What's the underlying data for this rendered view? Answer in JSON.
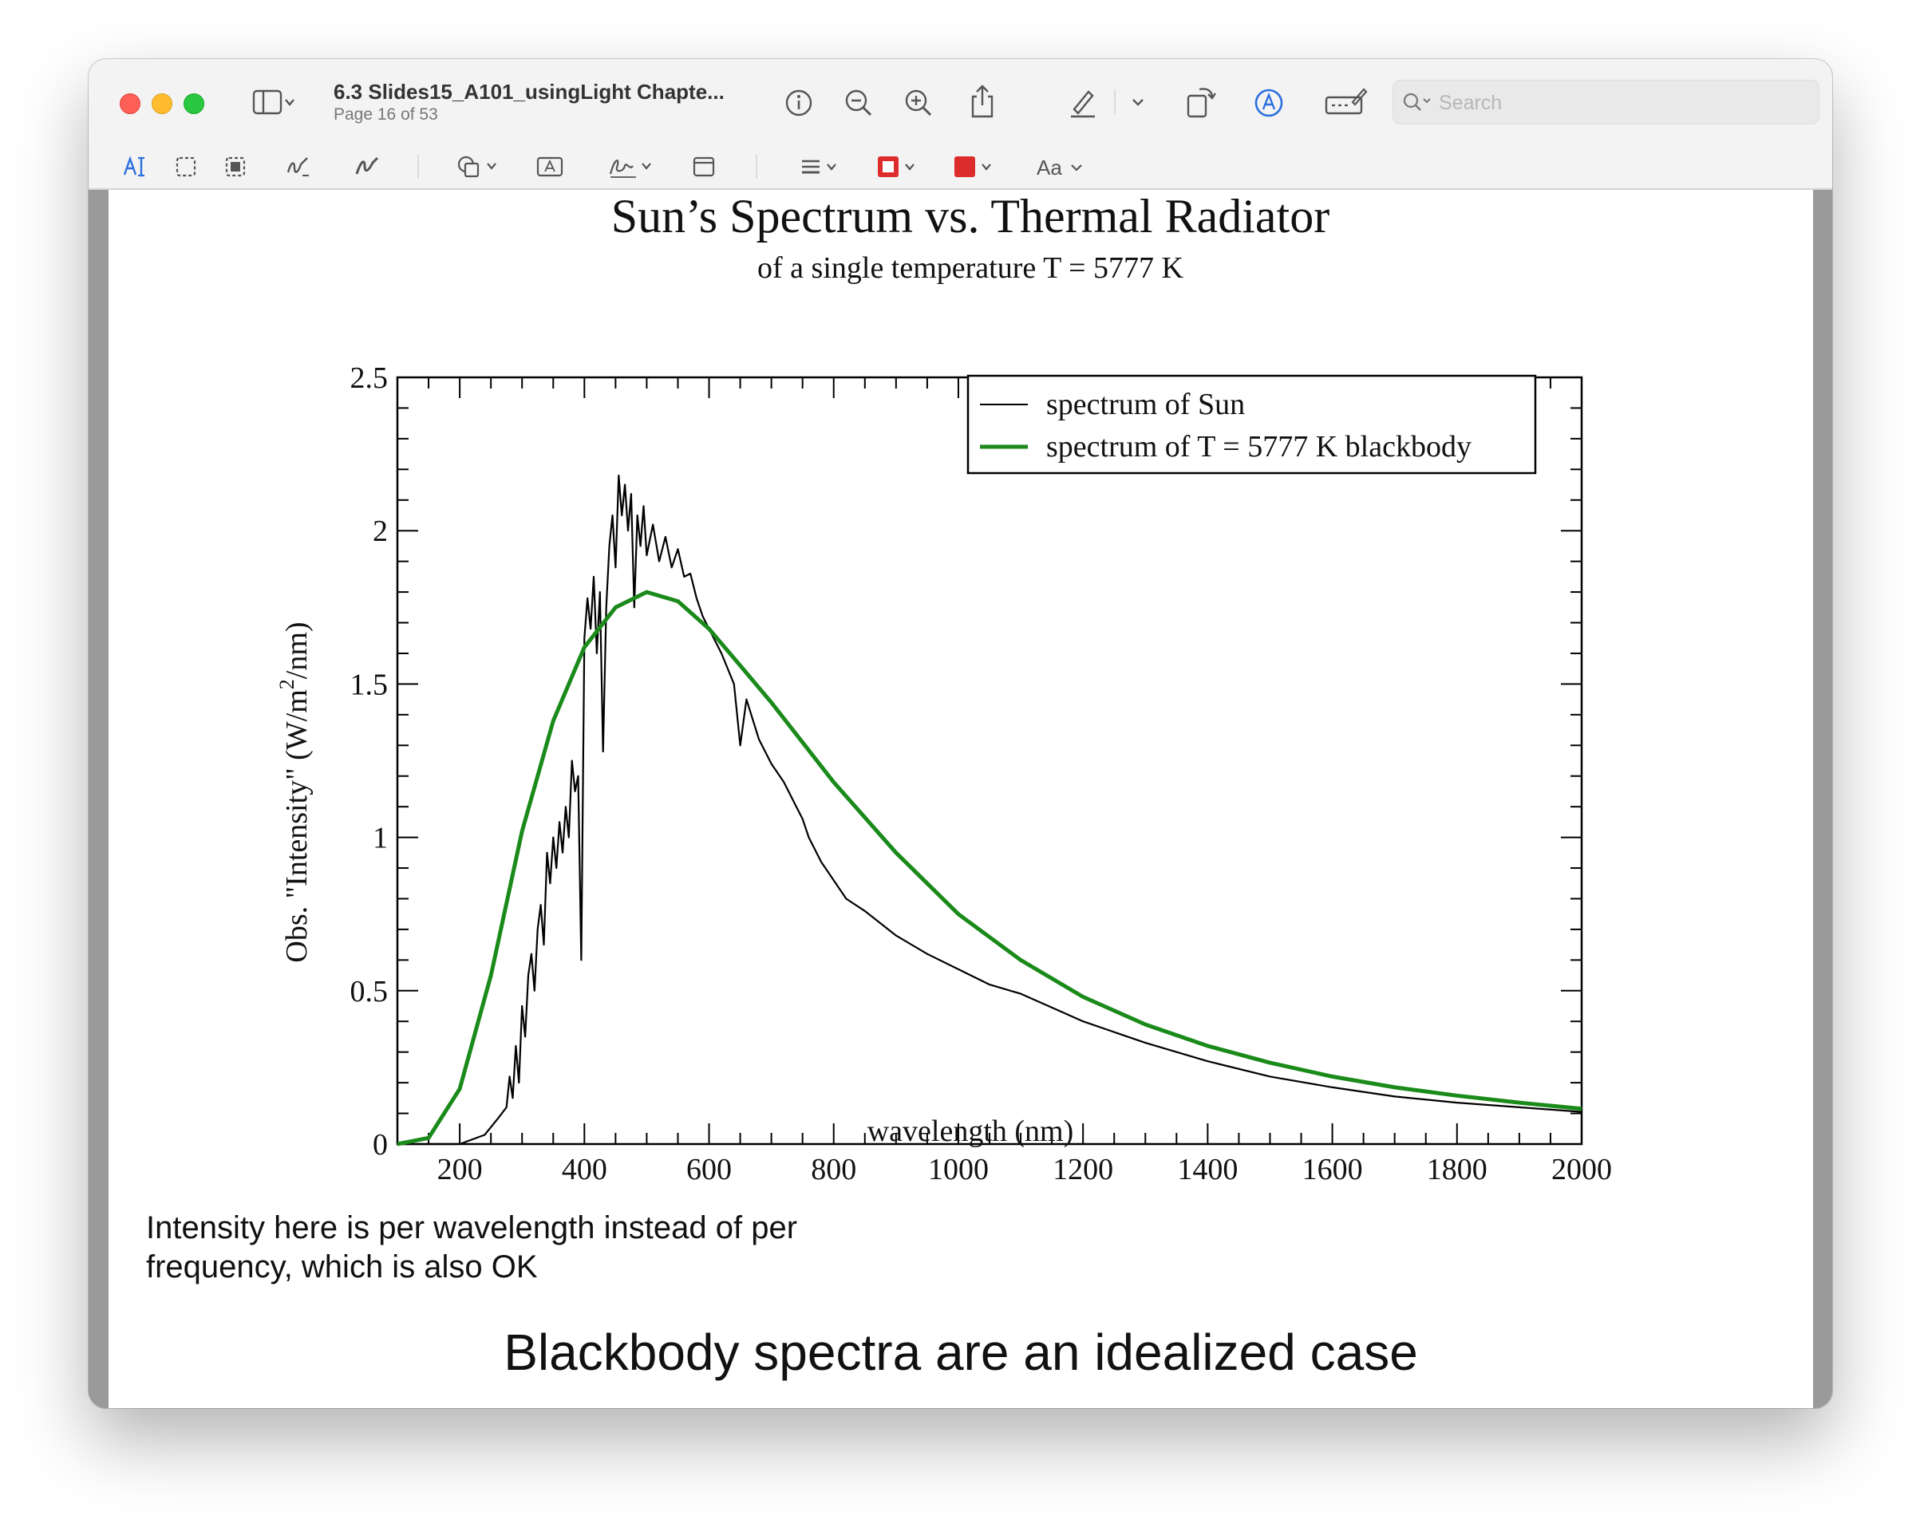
{
  "window": {
    "doc_title": "6.3 Slides15_A101_usingLight Chapte...",
    "page_status": "Page 16 of 53",
    "search_placeholder": "Search",
    "markup_text_label": "Aa"
  },
  "slide": {
    "note": "Intensity here is per wavelength instead of per frequency, which is also OK",
    "caption": "Blackbody spectra are an idealized case"
  },
  "chart_data": {
    "type": "line",
    "title": "Sun’s Spectrum vs. Thermal Radiator",
    "subtitle": "of a single temperature T = 5777 K",
    "xlabel": "wavelength (nm)",
    "ylabel_main": "Obs. \"Intensity\" (W/m",
    "ylabel_sup": "2",
    "ylabel_tail": "/nm)",
    "xlim": [
      100,
      2000
    ],
    "ylim": [
      0,
      2.5
    ],
    "x_ticks": [
      200,
      400,
      600,
      800,
      1000,
      1200,
      1400,
      1600,
      1800,
      2000
    ],
    "y_ticks": [
      0,
      0.5,
      1,
      1.5,
      2,
      2.5
    ],
    "y_tick_labels": [
      "0",
      "0.5",
      "1",
      "1.5",
      "2",
      "2.5"
    ],
    "legend_position": "top-right",
    "series": [
      {
        "name": "spectrum of Sun",
        "color": "#000000",
        "x": [
          100,
          200,
          240,
          260,
          275,
          280,
          285,
          290,
          295,
          300,
          305,
          310,
          315,
          320,
          325,
          330,
          335,
          340,
          345,
          350,
          355,
          360,
          365,
          370,
          375,
          380,
          385,
          390,
          395,
          400,
          405,
          410,
          415,
          420,
          425,
          430,
          435,
          440,
          445,
          450,
          455,
          460,
          465,
          470,
          475,
          480,
          485,
          490,
          495,
          500,
          510,
          520,
          530,
          540,
          550,
          560,
          570,
          580,
          590,
          600,
          620,
          640,
          650,
          660,
          680,
          700,
          720,
          740,
          750,
          760,
          780,
          800,
          820,
          850,
          900,
          950,
          1000,
          1050,
          1100,
          1200,
          1300,
          1400,
          1500,
          1600,
          1700,
          1800,
          1900,
          2000
        ],
        "y": [
          0,
          0,
          0.03,
          0.08,
          0.12,
          0.22,
          0.15,
          0.32,
          0.2,
          0.45,
          0.35,
          0.55,
          0.62,
          0.5,
          0.7,
          0.78,
          0.65,
          0.95,
          0.85,
          1.0,
          0.9,
          1.05,
          0.95,
          1.1,
          1.0,
          1.25,
          1.15,
          1.2,
          0.6,
          1.65,
          1.78,
          1.68,
          1.85,
          1.6,
          1.8,
          1.28,
          1.75,
          1.95,
          2.05,
          1.88,
          2.18,
          2.05,
          2.15,
          2.0,
          2.12,
          1.75,
          2.05,
          1.95,
          2.08,
          1.92,
          2.02,
          1.9,
          1.98,
          1.88,
          1.94,
          1.85,
          1.86,
          1.78,
          1.72,
          1.68,
          1.6,
          1.5,
          1.3,
          1.45,
          1.32,
          1.24,
          1.18,
          1.1,
          1.06,
          1.0,
          0.92,
          0.86,
          0.8,
          0.76,
          0.68,
          0.62,
          0.57,
          0.52,
          0.49,
          0.4,
          0.33,
          0.27,
          0.22,
          0.185,
          0.155,
          0.135,
          0.12,
          0.105
        ]
      },
      {
        "name": "spectrum of T = 5777 K blackbody",
        "color": "#1a8a1a",
        "x": [
          100,
          150,
          200,
          250,
          300,
          350,
          400,
          450,
          500,
          550,
          600,
          650,
          700,
          800,
          900,
          1000,
          1100,
          1200,
          1300,
          1400,
          1500,
          1600,
          1700,
          1800,
          1900,
          2000
        ],
        "y": [
          0,
          0.02,
          0.18,
          0.55,
          1.02,
          1.38,
          1.62,
          1.75,
          1.8,
          1.77,
          1.68,
          1.56,
          1.44,
          1.18,
          0.95,
          0.75,
          0.6,
          0.48,
          0.39,
          0.32,
          0.265,
          0.22,
          0.185,
          0.158,
          0.135,
          0.115
        ]
      }
    ]
  }
}
